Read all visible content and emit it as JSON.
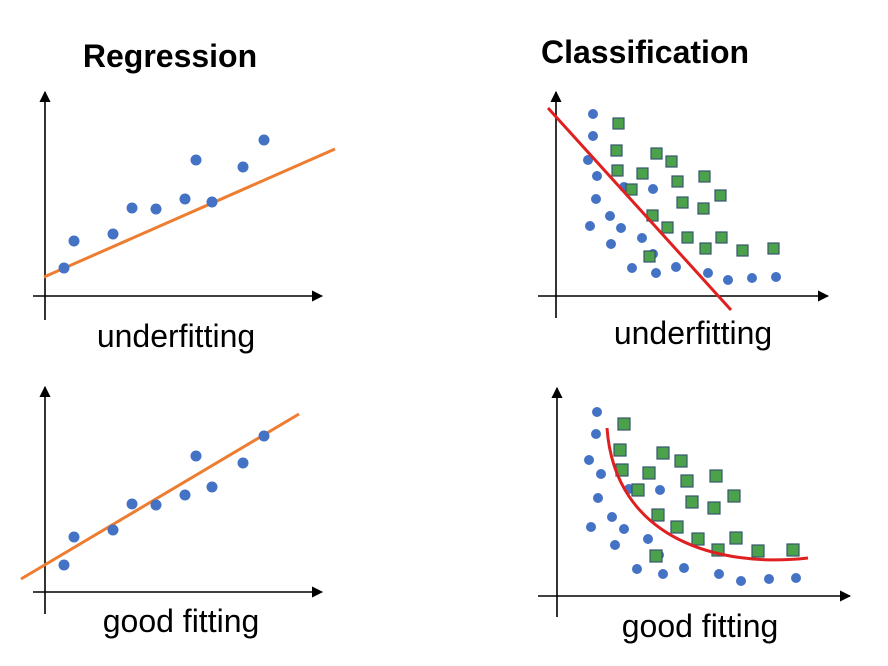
{
  "headings": {
    "regression": "Regression",
    "classification": "Classification"
  },
  "captions": {
    "reg_under": "underfitting",
    "cls_under": "underfitting",
    "reg_good": "good fitting",
    "cls_good": "good fitting"
  },
  "colors": {
    "dot": "#4472c4",
    "square_fill": "#4ca24a",
    "square_edge": "#35556f",
    "reg_line": "#ed7d31",
    "cls_line": "#e02020"
  },
  "icons": {
    "point": "circle",
    "square": "square",
    "axis_arrow": "arrowhead"
  }
}
